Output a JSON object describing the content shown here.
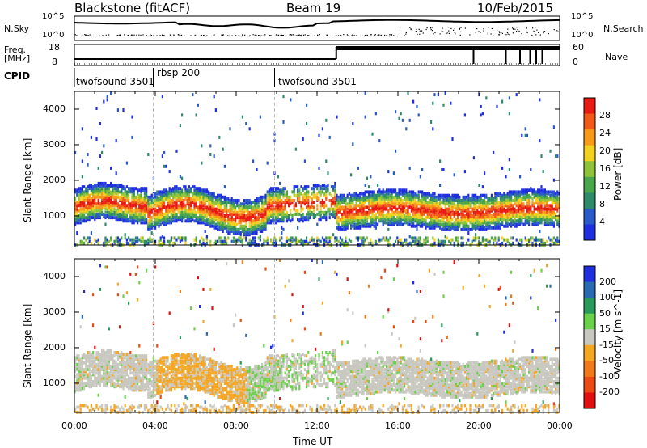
{
  "header": {
    "station": "Blackstone (fitACF)",
    "beam": "Beam 19",
    "date": "10/Feb/2015"
  },
  "status_panel": {
    "nsky_label": "N.Sky",
    "nsky_ticks": [
      "10^5",
      "10^0"
    ],
    "nsearch_label": "N.Search",
    "nsearch_ticks": [
      "10^5",
      "10^0"
    ],
    "freq_label": "Freq.",
    "freq_unit": "[MHz]",
    "freq_ticks": [
      "18",
      "8"
    ],
    "nave_label": "Nave",
    "nave_ticks": [
      "60",
      "0"
    ],
    "cpid_label": "CPID",
    "segments": [
      {
        "name": "twofsound 3501",
        "start_h": 0,
        "end_h": 3.9
      },
      {
        "name": "rbsp 200",
        "start_h": 3.9,
        "end_h": 9.9
      },
      {
        "name": "twofsound 3501",
        "start_h": 9.9,
        "end_h": 24
      }
    ]
  },
  "colors": {
    "power": [
      "#1f2fe0",
      "#2a5ac8",
      "#2f8a6a",
      "#4aa64a",
      "#8fc43a",
      "#f2d21e",
      "#f79a1a",
      "#f05a18",
      "#e81a14"
    ],
    "velocity": [
      "#1f2fe0",
      "#2a6ab0",
      "#2a9a5a",
      "#6ad24a",
      "#c8c8c0",
      "#f5a623",
      "#f07a1a",
      "#ea4a14",
      "#e01010"
    ]
  },
  "chart_data": [
    {
      "type": "heatmap",
      "parameter": "Power",
      "title": "",
      "xlabel": "",
      "ylabel": "Slant Range [km]",
      "xlim": [
        0,
        24
      ],
      "ylim": [
        180,
        4500
      ],
      "x_ticks": [
        "00:00",
        "04:00",
        "08:00",
        "12:00",
        "16:00",
        "20:00",
        "00:00"
      ],
      "y_ticks": [
        1000,
        2000,
        3000,
        4000
      ],
      "colorbar_label": "Power [dB]",
      "colorbar_ticks": [
        4,
        8,
        12,
        16,
        20,
        24,
        28
      ],
      "colorbar_range": [
        0,
        32
      ]
    },
    {
      "type": "heatmap",
      "parameter": "Velocity",
      "title": "",
      "xlabel": "Time UT",
      "ylabel": "Slant Range [km]",
      "xlim": [
        0,
        24
      ],
      "ylim": [
        180,
        4500
      ],
      "x_ticks": [
        "00:00",
        "04:00",
        "08:00",
        "12:00",
        "16:00",
        "20:00",
        "00:00"
      ],
      "y_ticks": [
        1000,
        2000,
        3000,
        4000
      ],
      "colorbar_label": "Velocity [m s^-1]",
      "colorbar_ticks": [
        "200",
        "100",
        "50",
        "15",
        "-15",
        "-50",
        "-100",
        "-200"
      ]
    }
  ]
}
